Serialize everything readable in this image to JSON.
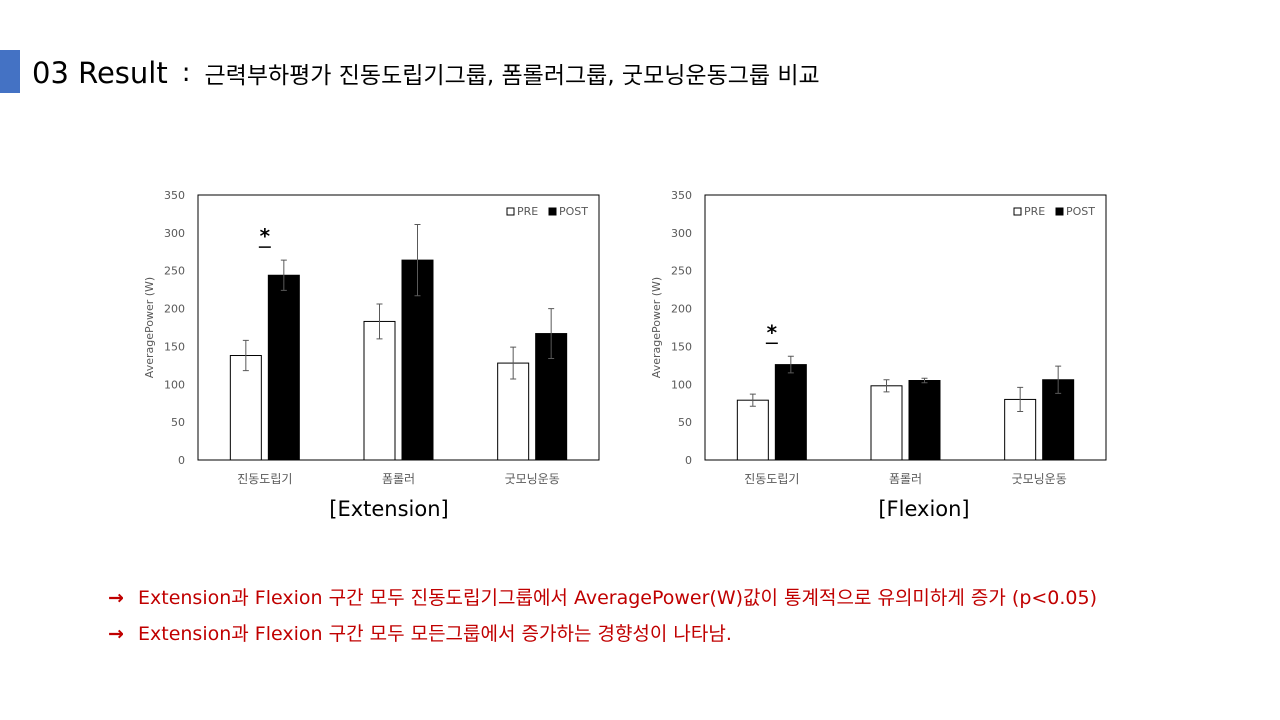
{
  "header": {
    "section": "03 Result",
    "colon": ":",
    "subtitle": "근력부하평가 진동도립기그룹, 폼롤러그룹, 굿모닝운동그룹 비교"
  },
  "colors": {
    "accent": "#4472c4",
    "note_text": "#c00000",
    "pre_fill": "#ffffff",
    "post_fill": "#000000"
  },
  "chart_data": [
    {
      "type": "bar",
      "title": "[Extension]",
      "ylabel": "AveragePower (W)",
      "categories": [
        "진동도립기",
        "폼롤러",
        "굿모닝운동"
      ],
      "ylim": [
        0,
        350
      ],
      "yticks": [
        0,
        50,
        100,
        150,
        200,
        250,
        300,
        350
      ],
      "legend": "top-right",
      "series": [
        {
          "name": "PRE",
          "values": [
            138,
            183,
            128
          ],
          "errors": [
            20,
            23,
            21
          ]
        },
        {
          "name": "POST",
          "values": [
            244,
            264,
            167
          ],
          "errors": [
            20,
            47,
            33
          ]
        }
      ],
      "annotations": [
        {
          "category_index": 0,
          "text": "*"
        }
      ]
    },
    {
      "type": "bar",
      "title": "[Flexion]",
      "ylabel": "AveragePower (W)",
      "categories": [
        "진동도립기",
        "폼롤러",
        "굿모닝운동"
      ],
      "ylim": [
        0,
        350
      ],
      "yticks": [
        0,
        50,
        100,
        150,
        200,
        250,
        300,
        350
      ],
      "legend": "top-right",
      "series": [
        {
          "name": "PRE",
          "values": [
            79,
            98,
            80
          ],
          "errors": [
            8,
            8,
            16
          ]
        },
        {
          "name": "POST",
          "values": [
            126,
            105,
            106
          ],
          "errors": [
            11,
            3,
            18
          ]
        }
      ],
      "annotations": [
        {
          "category_index": 0,
          "text": "*"
        }
      ]
    }
  ],
  "notes": [
    {
      "arrow": "→",
      "text": "Extension과 Flexion 구간 모두 진동도립기그룹에서 AveragePower(W)값이 통계적으로 유의미하게 증가 (p<0.05)"
    },
    {
      "arrow": "→",
      "text": "Extension과  Flexion 구간 모두 모든그룹에서 증가하는 경향성이 나타남."
    }
  ]
}
